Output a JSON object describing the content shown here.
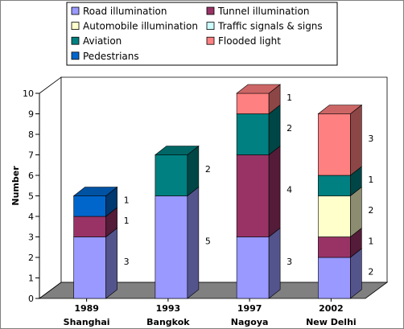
{
  "chart_data": {
    "type": "bar",
    "stacked": true,
    "three_d": true,
    "categories": [
      "1989",
      "1993",
      "1997",
      "2002"
    ],
    "sublabels": [
      "Shanghai",
      "Bangkok",
      "Nagoya",
      "New Delhi"
    ],
    "ylabel": "Number",
    "ylim": [
      0,
      10
    ],
    "yticks": [
      0,
      1,
      2,
      3,
      4,
      5,
      6,
      7,
      8,
      9,
      10
    ],
    "grid": false,
    "legend_position": "top",
    "series": [
      {
        "name": "Road illumination",
        "color": "#9999ff",
        "values": [
          3,
          5,
          3,
          2
        ]
      },
      {
        "name": "Tunnel illumination",
        "color": "#993366",
        "values": [
          1,
          0,
          4,
          1
        ]
      },
      {
        "name": "Automobile illumination",
        "color": "#ffffcc",
        "values": [
          0,
          0,
          0,
          2
        ]
      },
      {
        "name": "Traffic signals & signs",
        "color": "#ccffff",
        "values": [
          0,
          0,
          0,
          0
        ]
      },
      {
        "name": "Aviation",
        "color": "#008080",
        "values": [
          0,
          2,
          2,
          1
        ]
      },
      {
        "name": "Flooded light",
        "color": "#ff8080",
        "values": [
          0,
          0,
          1,
          3
        ]
      },
      {
        "name": "Pedestrians",
        "color": "#0066cc",
        "values": [
          1,
          0,
          0,
          0
        ]
      }
    ]
  }
}
